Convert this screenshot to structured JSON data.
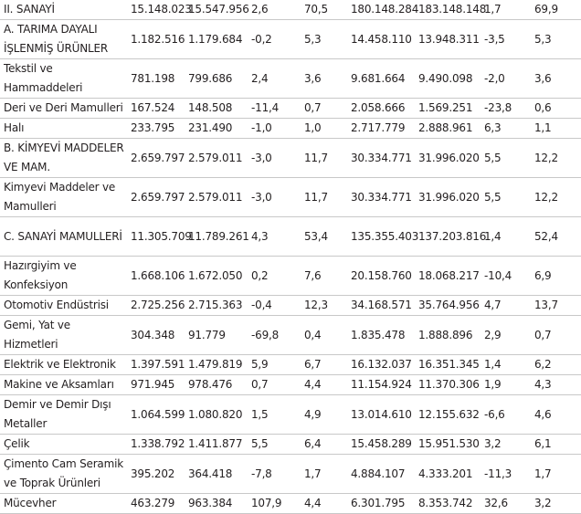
{
  "rows": [
    {
      "name": "II. SANAYİ",
      "v": [
        "15.148.023",
        "15.547.956",
        "2,6",
        "70,5",
        "180.148.284",
        "183.148.148",
        "1,7",
        "69,9"
      ]
    },
    {
      "name": "A. TARIMA DAYALI İŞLENMİŞ ÜRÜNLER",
      "v": [
        "1.182.516",
        "1.179.684",
        "-0,2",
        "5,3",
        "14.458.110",
        "13.948.311",
        "-3,5",
        "5,3"
      ]
    },
    {
      "name": "Tekstil ve Hammaddeleri",
      "v": [
        "781.198",
        "799.686",
        "2,4",
        "3,6",
        "9.681.664",
        "9.490.098",
        "-2,0",
        "3,6"
      ]
    },
    {
      "name": "Deri ve Deri Mamulleri",
      "v": [
        "167.524",
        "148.508",
        "-11,4",
        "0,7",
        "2.058.666",
        "1.569.251",
        "-23,8",
        "0,6"
      ]
    },
    {
      "name": "Halı",
      "v": [
        "233.795",
        "231.490",
        "-1,0",
        "1,0",
        "2.717.779",
        "2.888.961",
        "6,3",
        "1,1"
      ]
    },
    {
      "name": "B. KİMYEVİ MADDELER VE MAM.",
      "v": [
        "2.659.797",
        "2.579.011",
        "-3,0",
        "11,7",
        "30.334.771",
        "31.996.020",
        "5,5",
        "12,2"
      ]
    },
    {
      "name": "Kimyevi Maddeler ve Mamulleri",
      "v": [
        "2.659.797",
        "2.579.011",
        "-3,0",
        "11,7",
        "30.334.771",
        "31.996.020",
        "5,5",
        "12,2"
      ]
    },
    {
      "name": "C. SANAYİ MAMULLERİ",
      "v": [
        "11.305.709",
        "11.789.261",
        "4,3",
        "53,4",
        "135.355.403",
        "137.203.816",
        "1,4",
        "52,4"
      ]
    },
    {
      "name": "Hazırgiyim ve Konfeksiyon",
      "v": [
        "1.668.106",
        "1.672.050",
        "0,2",
        "7,6",
        "20.158.760",
        "18.068.217",
        "-10,4",
        "6,9"
      ]
    },
    {
      "name": "Otomotiv Endüstrisi",
      "v": [
        "2.725.256",
        "2.715.363",
        "-0,4",
        "12,3",
        "34.168.571",
        "35.764.956",
        "4,7",
        "13,7"
      ]
    },
    {
      "name": "Gemi, Yat ve Hizmetleri",
      "v": [
        "304.348",
        "91.779",
        "-69,8",
        "0,4",
        "1.835.478",
        "1.888.896",
        "2,9",
        "0,7"
      ]
    },
    {
      "name": "Elektrik ve Elektronik",
      "v": [
        "1.397.591",
        "1.479.819",
        "5,9",
        "6,7",
        "16.132.037",
        "16.351.345",
        "1,4",
        "6,2"
      ]
    },
    {
      "name": "Makine ve Aksamları",
      "v": [
        "971.945",
        "978.476",
        "0,7",
        "4,4",
        "11.154.924",
        "11.370.306",
        "1,9",
        "4,3"
      ]
    },
    {
      "name": "Demir ve Demir Dışı Metaller",
      "v": [
        "1.064.599",
        "1.080.820",
        "1,5",
        "4,9",
        "13.014.610",
        "12.155.632",
        "-6,6",
        "4,6"
      ]
    },
    {
      "name": "Çelik",
      "v": [
        "1.338.792",
        "1.411.877",
        "5,5",
        "6,4",
        "15.458.289",
        "15.951.530",
        "3,2",
        "6,1"
      ]
    },
    {
      "name": "Çimento Cam Seramik ve Toprak Ürünleri",
      "v": [
        "395.202",
        "364.418",
        "-7,8",
        "1,7",
        "4.884.107",
        "4.333.201",
        "-11,3",
        "1,7"
      ]
    },
    {
      "name": "Mücevher",
      "v": [
        "463.279",
        "963.384",
        "107,9",
        "4,4",
        "6.301.795",
        "8.353.742",
        "32,6",
        "3,2"
      ]
    }
  ]
}
